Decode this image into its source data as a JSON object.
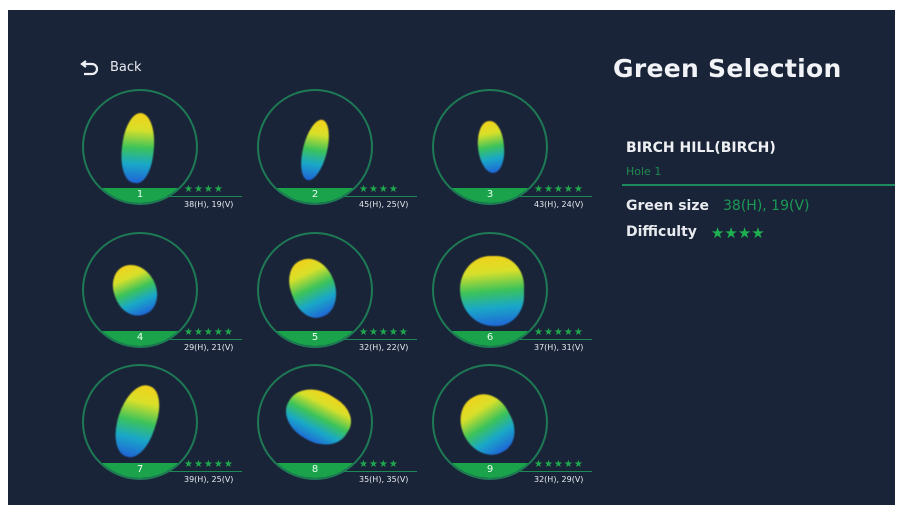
{
  "header": {
    "back_label": "Back",
    "title": "Green Selection"
  },
  "detail": {
    "course": "BIRCH HILL(BIRCH)",
    "hole": "Hole 1",
    "green_size_label": "Green size",
    "green_size_value": "38(H), 19(V)",
    "difficulty_label": "Difficulty",
    "difficulty_stars": "★★★★",
    "difficulty": 4
  },
  "holes": [
    {
      "number": "1",
      "stars": "★★★★",
      "difficulty": 4,
      "size": "38(H), 19(V)"
    },
    {
      "number": "2",
      "stars": "★★★★",
      "difficulty": 4,
      "size": "45(H), 25(V)"
    },
    {
      "number": "3",
      "stars": "★★★★★",
      "difficulty": 5,
      "size": "43(H), 24(V)"
    },
    {
      "number": "4",
      "stars": "★★★★★",
      "difficulty": 5,
      "size": "29(H), 21(V)"
    },
    {
      "number": "5",
      "stars": "★★★★★",
      "difficulty": 5,
      "size": "32(H), 22(V)"
    },
    {
      "number": "6",
      "stars": "★★★★★",
      "difficulty": 5,
      "size": "37(H), 31(V)"
    },
    {
      "number": "7",
      "stars": "★★★★★",
      "difficulty": 5,
      "size": "39(H), 25(V)"
    },
    {
      "number": "8",
      "stars": "★★★★",
      "difficulty": 4,
      "size": "35(H), 35(V)"
    },
    {
      "number": "9",
      "stars": "★★★★★",
      "difficulty": 5,
      "size": "32(H), 29(V)"
    }
  ]
}
